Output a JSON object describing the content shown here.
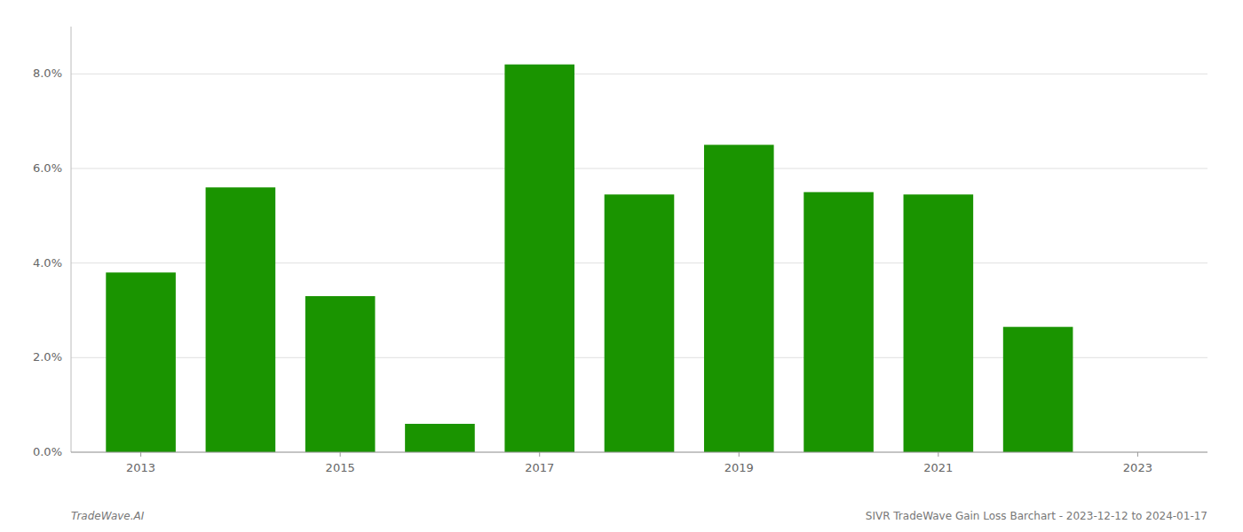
{
  "chart_data": {
    "type": "bar",
    "title": "SIVR TradeWave Gain Loss Barchart - 2023-12-12 to 2024-01-17",
    "annotations": [
      "TradeWave.AI"
    ],
    "x": [
      2013,
      2014,
      2015,
      2016,
      2017,
      2018,
      2019,
      2020,
      2021,
      2022,
      2023
    ],
    "values": [
      0.038,
      0.056,
      0.033,
      0.006,
      0.082,
      0.0545,
      0.065,
      0.055,
      0.0545,
      0.0265,
      null
    ],
    "color": "#1a9400",
    "xlim": [
      2012.3,
      2023.7
    ],
    "xticks": [
      2013,
      2015,
      2017,
      2019,
      2021,
      2023
    ],
    "ylim": [
      0,
      0.09
    ],
    "yticks": [
      {
        "value": 0.0,
        "label": "0.0%"
      },
      {
        "value": 0.02,
        "label": "2.0%"
      },
      {
        "value": 0.04,
        "label": "4.0%"
      },
      {
        "value": 0.06,
        "label": "6.0%"
      },
      {
        "value": 0.08,
        "label": "8.0%"
      }
    ],
    "grid": true
  }
}
